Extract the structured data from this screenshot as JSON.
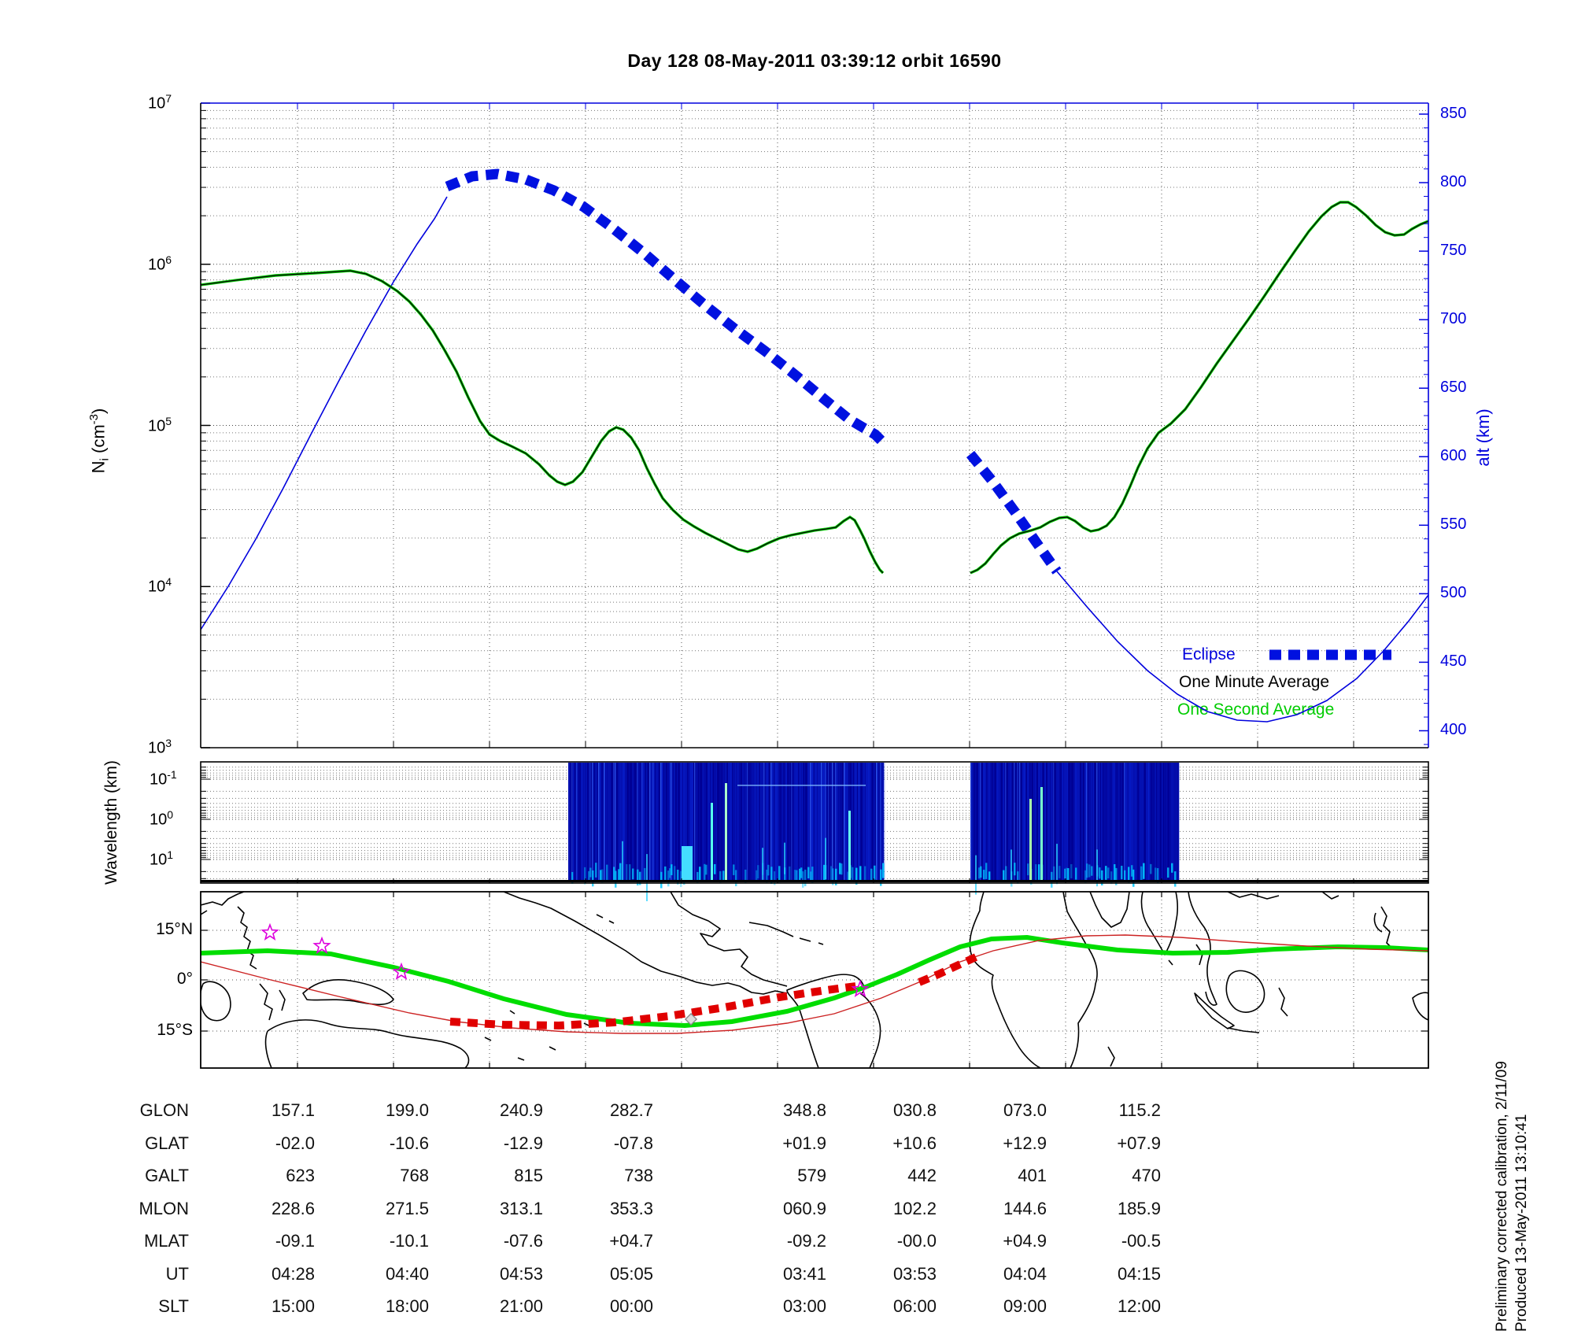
{
  "title": "Day 128  08-May-2011 03:39:12   orbit 16590",
  "legend": {
    "eclipse": "Eclipse",
    "one_minute": "One Minute Average",
    "one_second": "One Second Average"
  },
  "axes": {
    "density": {
      "label_main": "N",
      "label_sub": "i",
      "label_unit_pre": " (cm",
      "label_unit_sup": "-3",
      "label_unit_post": ")",
      "tick_exponents": [
        7,
        6,
        5,
        4,
        3
      ]
    },
    "alt": {
      "label": "alt (km)",
      "ticks": [
        850,
        800,
        750,
        700,
        650,
        600,
        550,
        500,
        450,
        400
      ]
    },
    "wavelength": {
      "label": "Wavelength (km)",
      "tick_exponents": [
        -1,
        0,
        1
      ]
    },
    "map": {
      "lat_ticks": [
        "15°N",
        "0°",
        "15°S"
      ]
    }
  },
  "table": {
    "rows": [
      {
        "label": "GLON",
        "values": [
          "157.1",
          "199.0",
          "240.9",
          "282.7",
          "348.8",
          "030.8",
          "073.0",
          "115.2"
        ]
      },
      {
        "label": "GLAT",
        "values": [
          "-02.0",
          "-10.6",
          "-12.9",
          "-07.8",
          "+01.9",
          "+10.6",
          "+12.9",
          "+07.9"
        ]
      },
      {
        "label": "GALT",
        "values": [
          "623",
          "768",
          "815",
          "738",
          "579",
          "442",
          "401",
          "470"
        ]
      },
      {
        "label": "MLON",
        "values": [
          "228.6",
          "271.5",
          "313.1",
          "353.3",
          "060.9",
          "102.2",
          "144.6",
          "185.9"
        ]
      },
      {
        "label": "MLAT",
        "values": [
          "-09.1",
          "-10.1",
          "-07.6",
          "+04.7",
          "-09.2",
          "-00.0",
          "+04.9",
          "-00.5"
        ]
      },
      {
        "label": "UT",
        "values": [
          "04:28",
          "04:40",
          "04:53",
          "05:05",
          "03:41",
          "03:53",
          "04:04",
          "04:15"
        ]
      },
      {
        "label": "SLT",
        "values": [
          "15:00",
          "18:00",
          "21:00",
          "00:00",
          "03:00",
          "06:00",
          "09:00",
          "12:00"
        ]
      }
    ]
  },
  "footnote": {
    "line1": "Preliminary corrected calibration, 2/11/09",
    "line2": "Produced 13-May-2011 13:10:41"
  },
  "colors": {
    "curve_blue": "#0000dd",
    "eclipse_blue": "#0011e0",
    "one_second_green": "#00cc00",
    "one_minute_black": "#000000",
    "map_track_red": "#cc2222",
    "map_eclipse_red": "#e00000",
    "mag_equator_green": "#00dd00",
    "station_magenta": "#dd00dd",
    "spectrogram_base": "#000095"
  },
  "chart_data": [
    {
      "type": "line",
      "title": "Ion density and spacecraft altitude vs orbit position",
      "ylabel": "Ni (cm-3)",
      "y2label": "alt (km)",
      "yscale": "log",
      "ylim": [
        1000,
        10000000
      ],
      "y2lim": [
        387,
        858
      ],
      "grid": "log minor dotted",
      "legend_position": "lower right",
      "series": [
        {
          "name": "One Second Average density (cm-3)",
          "x_frac": [
            0.0,
            0.06,
            0.12,
            0.17,
            0.2,
            0.23,
            0.26,
            0.29,
            0.3,
            0.33,
            0.34,
            0.36,
            0.39,
            0.43,
            0.45,
            0.48,
            0.52,
            0.53,
            0.56,
            null,
            0.63,
            0.67,
            0.7,
            0.72,
            0.76,
            0.8,
            0.85,
            0.9,
            0.93,
            0.96,
            1.0
          ],
          "values": [
            750000,
            850000,
            910000,
            590000,
            290000,
            106000,
            73000,
            49000,
            45000,
            80000,
            97000,
            54000,
            26000,
            18000,
            16600,
            21000,
            23000,
            27000,
            12000,
            null,
            12000,
            21000,
            27000,
            22000,
            55000,
            124000,
            440000,
            1600000,
            2400000,
            1600000,
            1800000
          ]
        },
        {
          "name": "One Minute Average density (cm-3)",
          "note": "black line overlying the one second average, nearly identical"
        },
        {
          "name": "altitude (km)",
          "x_frac": [
            0.0,
            0.064,
            0.131,
            0.176,
            0.201,
            0.24,
            0.311,
            0.388,
            0.465,
            0.556,
            null,
            0.627,
            0.697,
            0.776,
            0.853,
            0.878,
            0.955,
            1.0
          ],
          "values": [
            474,
            570,
            682,
            755,
            797,
            806,
            783,
            729,
            677,
            611,
            null,
            602,
            516,
            440,
            407,
            408,
            448,
            495
          ]
        },
        {
          "name": "Eclipse (thick dashed, on altitude curve)",
          "x_frac_segments": [
            [
              0.201,
              0.556
            ],
            [
              0.627,
              0.697
            ]
          ]
        }
      ],
      "data_gap_x_frac": [
        0.556,
        0.627
      ]
    },
    {
      "type": "heatmap",
      "title": "Density fluctuation wavelet spectrogram",
      "ylabel": "Wavelength (km)",
      "yscale": "log inverted (0.1 km at top to ~30 km at bottom)",
      "ylim": [
        0.1,
        30
      ],
      "blocks_x_frac": [
        [
          0.299,
          0.556
        ],
        [
          0.627,
          0.797
        ]
      ],
      "description": "dark blue background with vertical streaks; bright cyan band at long wavelengths along the bottom; isolated bright cyan-green columns near x_frac 0.42, 0.43, 0.53, 0.675, 0.685"
    },
    {
      "type": "map",
      "title": "World map with orbit ground track",
      "lat_ticks": [
        "15°N",
        "0°",
        "15°S"
      ],
      "ground_track_lon_lat": [
        [
          157.1,
          -2.0
        ],
        [
          199.0,
          -10.6
        ],
        [
          240.9,
          -12.9
        ],
        [
          282.7,
          -7.8
        ],
        [
          348.8,
          1.9
        ],
        [
          30.8,
          10.6
        ],
        [
          73.0,
          12.9
        ],
        [
          115.2,
          7.9
        ]
      ],
      "eclipse_segments": "red dashed portions of track over eastern Pacific / South America and over Atlantic / west Africa",
      "magnetic_equator": "thick green wavy line spanning the map",
      "stations_magenta_stars": 4,
      "spacecraft_marker": "grey diamond on track in eastern Pacific"
    }
  ]
}
